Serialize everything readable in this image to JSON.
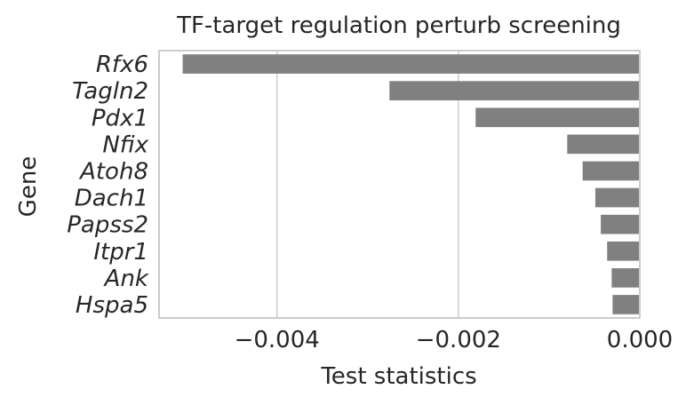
{
  "chart_data": {
    "type": "bar",
    "orientation": "horizontal",
    "title": "TF-target regulation perturb screening",
    "xlabel": "Test statistics",
    "ylabel": "Gene",
    "categories": [
      "Rfx6",
      "Tagln2",
      "Pdx1",
      "Nfix",
      "Atoh8",
      "Dach1",
      "Papss2",
      "Itpr1",
      "Ank",
      "Hspa5"
    ],
    "values": [
      -0.00504,
      -0.00276,
      -0.00181,
      -0.0008,
      -0.00063,
      -0.00049,
      -0.00043,
      -0.00036,
      -0.00031,
      -0.0003
    ],
    "xlim": [
      -0.0053,
      0.0
    ],
    "xticks": [
      -0.004,
      -0.002,
      0.0
    ],
    "xtick_labels": [
      "−0.004",
      "−0.002",
      "0.000"
    ],
    "grid": true,
    "bar_color": "#808080"
  }
}
